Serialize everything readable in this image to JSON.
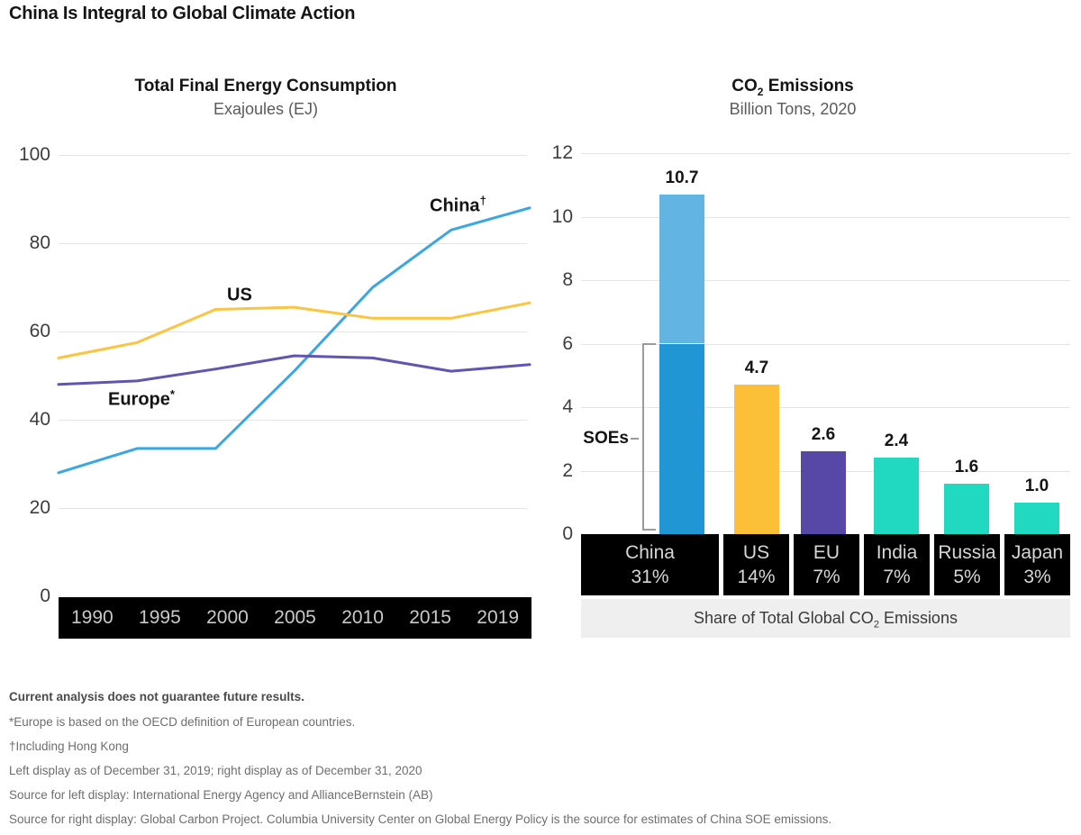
{
  "header": {
    "title": "China Is Integral to Global Climate Action"
  },
  "left_chart": {
    "title": "Total Final Energy Consumption",
    "subtitle": "Exajoules (EJ)",
    "series_labels": {
      "china": {
        "text": "China",
        "sup": "†"
      },
      "us": {
        "text": "US",
        "sup": ""
      },
      "europe": {
        "text": "Europe",
        "sup": "*"
      }
    }
  },
  "right_chart": {
    "title": {
      "pre": "CO",
      "sub": "2",
      "post": " Emissions"
    },
    "subtitle": "Billion Tons, 2020",
    "soe_annotation": "SOEs",
    "caption": {
      "pre": "Share of Total Global CO",
      "sub": "2",
      "post": " Emissions"
    }
  },
  "footnotes": {
    "disclaimer": "Current analysis does not guarantee future results.",
    "lines": [
      "*Europe is based on the OECD definition of European countries.",
      "†Including Hong Kong",
      "Left display as of December 31, 2019; right display as of December 31, 2020",
      "Source for left display: International Energy Agency and AllianceBernstein (AB)",
      "Source for right display: Global Carbon Project. Columbia University Center on Global Energy Policy is the source for estimates of China SOE emissions."
    ]
  },
  "chart_data": [
    {
      "type": "line",
      "title": "Total Final Energy Consumption",
      "subtitle": "Exajoules (EJ)",
      "categories": [
        "1990",
        "1995",
        "2000",
        "2005",
        "2010",
        "2015",
        "2019"
      ],
      "series": [
        {
          "name": "China†",
          "color": "#3aa6e3",
          "values": [
            28,
            33.5,
            33.5,
            51,
            70,
            83,
            88
          ]
        },
        {
          "name": "US",
          "color": "#fcc440",
          "values": [
            54,
            57.5,
            65,
            65.5,
            63,
            63,
            66.5
          ]
        },
        {
          "name": "Europe*",
          "color": "#6055b0",
          "values": [
            48,
            48.8,
            51.5,
            54.5,
            54,
            51,
            52.5
          ]
        }
      ],
      "xlabel": "",
      "ylabel": "Exajoules (EJ)",
      "ylim": [
        0,
        100
      ],
      "yticks": [
        0,
        20,
        40,
        60,
        80,
        100
      ],
      "grid": true,
      "legend_position": "inline-labels"
    },
    {
      "type": "bar",
      "title": "CO2 Emissions",
      "subtitle": "Billion Tons, 2020",
      "categories": [
        "China",
        "US",
        "EU",
        "India",
        "Russia",
        "Japan"
      ],
      "values": [
        10.7,
        4.7,
        2.6,
        2.4,
        1.6,
        1.0
      ],
      "value_labels": [
        "10.7",
        "4.7",
        "2.6",
        "2.4",
        "1.6",
        "1.0"
      ],
      "shares": [
        "31%",
        "14%",
        "7%",
        "7%",
        "5%",
        "3%"
      ],
      "bar_colors": [
        "#2196d5",
        "#fcbf38",
        "#5748a8",
        "#21d8c0",
        "#21d8c0",
        "#21d8c0"
      ],
      "china_stack": {
        "soe_dark_portion": 6.0,
        "non_soe_light_portion": 4.7,
        "light_color": "#62b5e2"
      },
      "soe_annotation": "SOEs",
      "xlabel": "Share of Total Global CO2 Emissions",
      "ylabel": "Billion Tons",
      "ylim": [
        0,
        12
      ],
      "yticks": [
        0,
        2,
        4,
        6,
        8,
        10,
        12
      ],
      "grid": true
    }
  ]
}
